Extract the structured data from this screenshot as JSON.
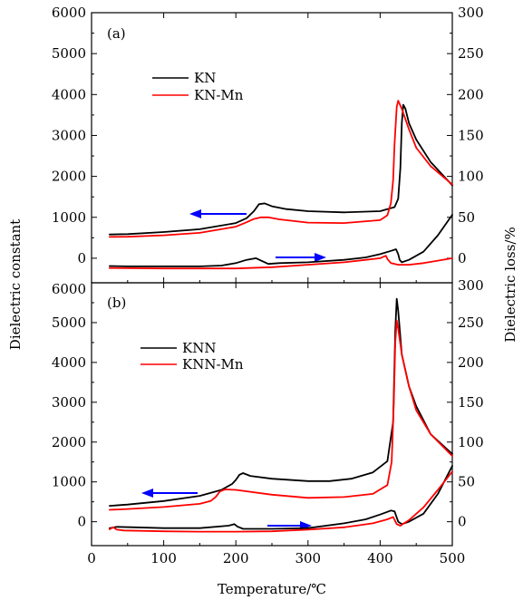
{
  "figure": {
    "x_title": "Temperature/℃",
    "y_left_title": "Dielectric constant",
    "y_right_title": "Dielectric loss/%",
    "x_ticks": [
      "0",
      "100",
      "200",
      "300",
      "400",
      "500"
    ],
    "panels": [
      {
        "label": "(a)",
        "left_ticks": [
          "0",
          "1000",
          "2000",
          "3000",
          "4000",
          "5000",
          "6000"
        ],
        "right_ticks": [
          "0",
          "50",
          "100",
          "150",
          "200",
          "250",
          "300"
        ],
        "legend": [
          "KN",
          "KN-Mn"
        ]
      },
      {
        "label": "(b)",
        "left_ticks": [
          "0",
          "1000",
          "2000",
          "3000",
          "4000",
          "5000",
          "6000"
        ],
        "right_ticks": [
          "0",
          "50",
          "100",
          "150",
          "200",
          "250",
          "300"
        ],
        "legend": [
          "KNN",
          "KNN-Mn"
        ]
      }
    ]
  },
  "chart_data": [
    {
      "type": "line",
      "panel_label": "(a)",
      "xlabel": "Temperature/℃",
      "ylabel": "Dielectric constant",
      "y2label": "Dielectric loss/%",
      "xlim": [
        0,
        500
      ],
      "ylim": [
        -600,
        6000
      ],
      "y2lim": [
        -30,
        300
      ],
      "grid": false,
      "legend_position": "upper-left",
      "series": [
        {
          "name": "KN",
          "axis": "left",
          "color": "#000000",
          "x": [
            25,
            50,
            100,
            150,
            200,
            215,
            225,
            232,
            240,
            250,
            270,
            300,
            350,
            400,
            420,
            425,
            428,
            430,
            432,
            435,
            440,
            450,
            470,
            500
          ],
          "y": [
            580,
            590,
            640,
            710,
            860,
            980,
            1150,
            1320,
            1340,
            1270,
            1200,
            1150,
            1120,
            1150,
            1250,
            1450,
            2200,
            3300,
            3750,
            3650,
            3300,
            2900,
            2350,
            1780
          ]
        },
        {
          "name": "KN-Mn",
          "axis": "left",
          "color": "#ff0000",
          "x": [
            25,
            50,
            100,
            150,
            200,
            215,
            225,
            235,
            245,
            260,
            300,
            350,
            400,
            410,
            415,
            418,
            420,
            423,
            425,
            430,
            440,
            450,
            470,
            500
          ],
          "y": [
            520,
            525,
            560,
            620,
            770,
            880,
            960,
            1000,
            1000,
            950,
            870,
            860,
            930,
            1050,
            1350,
            1900,
            2800,
            3700,
            3850,
            3650,
            3150,
            2700,
            2250,
            1800
          ]
        },
        {
          "name": "KN loss",
          "axis": "right",
          "color": "#000000",
          "x": [
            25,
            50,
            100,
            150,
            180,
            200,
            215,
            228,
            235,
            245,
            260,
            300,
            350,
            380,
            400,
            415,
            422,
            425,
            427,
            430,
            440,
            460,
            480,
            500
          ],
          "y": [
            -9.5,
            -10,
            -10,
            -10,
            -9,
            -6,
            -2,
            0,
            -3,
            -7,
            -6,
            -5,
            -2,
            1,
            5,
            9,
            11,
            5,
            -2,
            -5,
            -2,
            8,
            28,
            53
          ]
        },
        {
          "name": "KN-Mn loss",
          "axis": "right",
          "color": "#ff0000",
          "x": [
            25,
            100,
            200,
            250,
            300,
            350,
            380,
            400,
            405,
            408,
            410,
            415,
            425,
            440,
            460,
            480,
            500
          ],
          "y": [
            -12,
            -12.5,
            -12.5,
            -11,
            -8,
            -5,
            -2,
            0,
            2,
            3,
            -1,
            -6,
            -8,
            -8,
            -6,
            -3,
            0
          ]
        }
      ]
    },
    {
      "type": "line",
      "panel_label": "(b)",
      "xlabel": "Temperature/℃",
      "ylabel": "Dielectric constant",
      "y2label": "Dielectric loss/%",
      "xlim": [
        0,
        500
      ],
      "ylim": [
        -600,
        6000
      ],
      "y2lim": [
        -30,
        300
      ],
      "grid": false,
      "legend_position": "upper-left",
      "series": [
        {
          "name": "KNN",
          "axis": "left",
          "color": "#000000",
          "x": [
            25,
            50,
            100,
            150,
            180,
            195,
            200,
            205,
            210,
            220,
            250,
            300,
            330,
            360,
            390,
            410,
            418,
            421,
            423,
            425,
            430,
            440,
            450,
            470,
            500
          ],
          "y": [
            400,
            430,
            520,
            650,
            800,
            950,
            1050,
            1180,
            1220,
            1150,
            1080,
            1020,
            1020,
            1080,
            1240,
            1520,
            2500,
            4800,
            5600,
            5300,
            4200,
            3400,
            2900,
            2200,
            1700
          ]
        },
        {
          "name": "KNN-Mn",
          "axis": "left",
          "color": "#ff0000",
          "x": [
            25,
            50,
            100,
            150,
            165,
            172,
            178,
            185,
            200,
            250,
            300,
            350,
            390,
            410,
            416,
            419,
            421,
            423,
            425,
            430,
            440,
            450,
            470,
            500
          ],
          "y": [
            300,
            320,
            370,
            450,
            520,
            620,
            760,
            810,
            800,
            680,
            600,
            620,
            700,
            920,
            1500,
            3000,
            4500,
            5050,
            4850,
            4200,
            3400,
            2800,
            2200,
            1650
          ]
        },
        {
          "name": "KNN loss",
          "axis": "right",
          "color": "#000000",
          "x": [
            25,
            35,
            60,
            100,
            150,
            190,
            198,
            202,
            210,
            250,
            300,
            350,
            380,
            400,
            415,
            420,
            425,
            430,
            440,
            460,
            480,
            500
          ],
          "y": [
            -8,
            -6.5,
            -7,
            -8,
            -8,
            -5,
            -3,
            -6,
            -9,
            -9,
            -8,
            -2,
            3,
            9,
            14,
            13,
            0,
            -3,
            0,
            10,
            35,
            70
          ]
        },
        {
          "name": "KNN-Mn loss",
          "axis": "right",
          "color": "#ff0000",
          "x": [
            25,
            30,
            35,
            45,
            100,
            150,
            200,
            250,
            300,
            350,
            390,
            410,
            418,
            423,
            428,
            440,
            460,
            480,
            500
          ],
          "y": [
            -9.5,
            -7,
            -10,
            -11,
            -12,
            -12.5,
            -12.5,
            -12,
            -10,
            -7,
            -2,
            3,
            6,
            -3,
            -5,
            2,
            18,
            40,
            63
          ]
        }
      ]
    }
  ]
}
